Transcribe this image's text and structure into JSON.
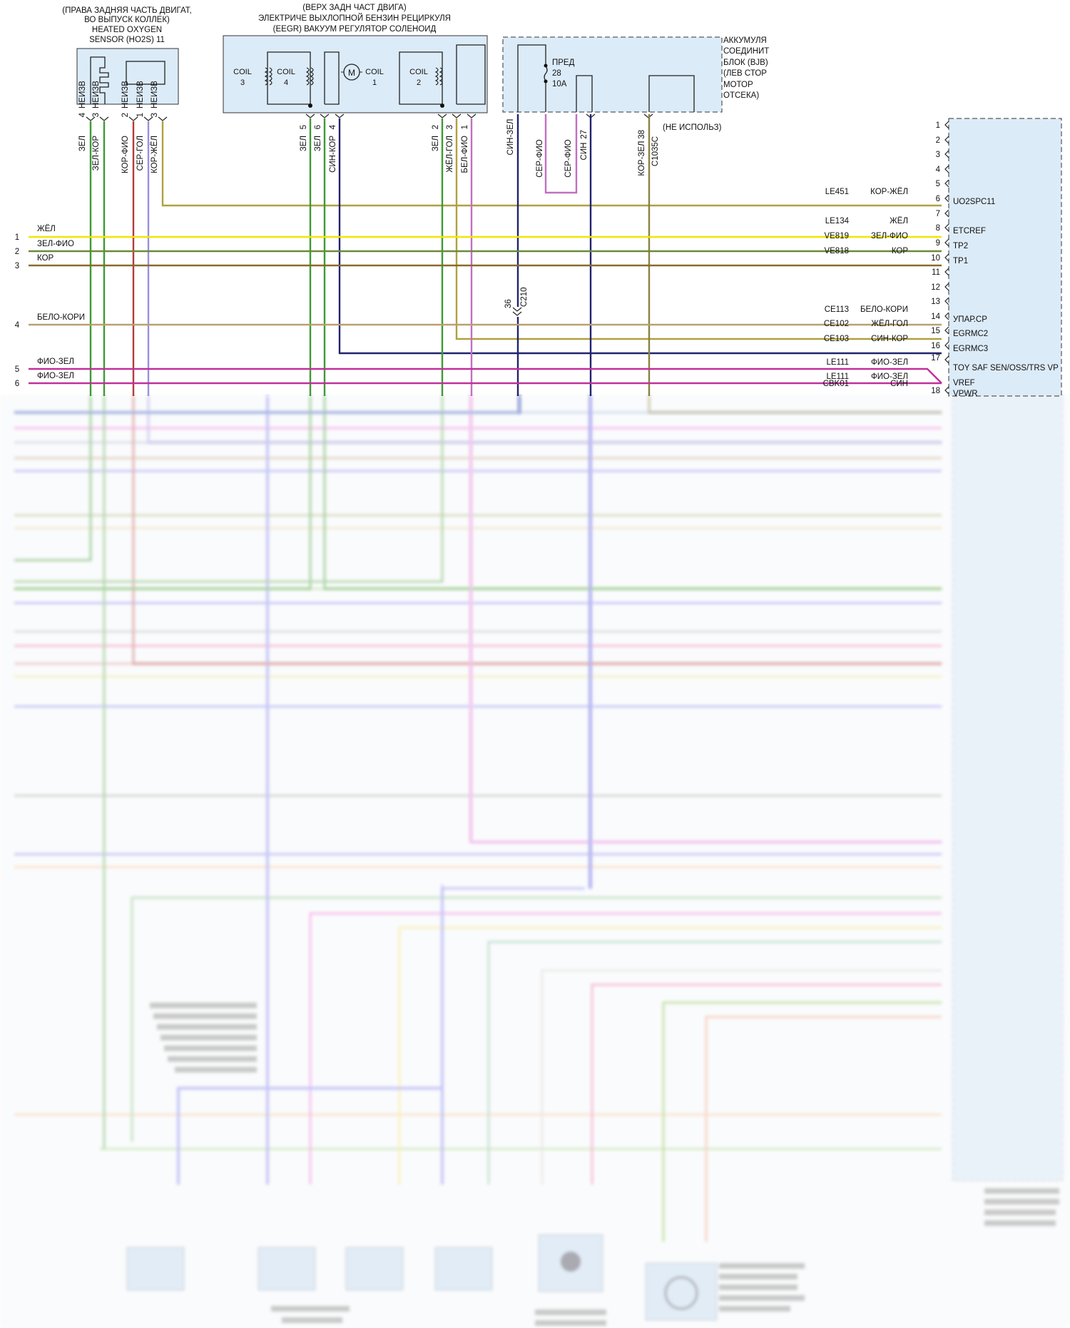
{
  "colors": {
    "wire_green": "#3d9a34",
    "wire_red": "#b43a3a",
    "wire_lavender": "#9a8fdc",
    "wire_olive": "#b0a040",
    "wire_navy": "#22226e",
    "wire_yellow": "#f0e800",
    "wire_brown": "#8a6a2a",
    "wire_magenta": "#c0309a",
    "wire_orchid": "#c070c0",
    "wire_pale_brown": "#b8a070",
    "module_fill": "#dcebf8",
    "blur_blue": "#8080ee",
    "blur_pink": "#ee70dd"
  },
  "icons": [
    "heater-coil-icon",
    "sensor-element-icon",
    "relay-coil-icon",
    "motor-icon",
    "fuse-icon",
    "connector-chevron-icon",
    "splice-dot-icon"
  ],
  "o2_sensor": {
    "title_lines": [
      "(ПРАВА ЗАДНЯЯ ЧАСТЬ ДВИГАТ,",
      "ВО ВЫПУСК КОЛЛЕК)",
      "HEATED OXYGEN",
      "SENSOR (HO2S) 11"
    ],
    "pins": [
      {
        "num": "4",
        "tag": "НЕИЗВ",
        "wire": "ЗЕЛ"
      },
      {
        "num": "3",
        "tag": "НЕИЗВ",
        "wire": "ЗЕЛ-КОР"
      },
      {
        "num": "2",
        "tag": "НЕИЗВ",
        "wire": "КОР-ФИО"
      },
      {
        "num": "1",
        "tag": "НЕИЗВ",
        "wire": "СЕР-ГОЛ"
      },
      {
        "num": "3",
        "tag": "НЕИЗВ",
        "wire": "КОР-ЖЁЛ"
      }
    ]
  },
  "egr": {
    "title_lines": [
      "(ВЕРХ ЗАДН ЧАСТ ДВИГА)",
      "ЭЛЕКТРИЧЕ ВЫХЛОПНОЙ БЕНЗИН РЕЦИРКУЛЯ",
      "(EEGR) ВАКУУМ РЕГУЛЯТОР СОЛЕНОИД"
    ],
    "coils": [
      {
        "label": "COIL",
        "num": "3"
      },
      {
        "label": "COIL",
        "num": "4"
      },
      {
        "label": "COIL",
        "num": "1"
      },
      {
        "label": "COIL",
        "num": "2"
      }
    ],
    "motor_label": "M",
    "pins": [
      {
        "num": "5",
        "wire": "ЗЕЛ"
      },
      {
        "num": "6",
        "wire": "ЗЕЛ"
      },
      {
        "num": "4",
        "wire": "СИН-КОР"
      },
      {
        "num": "2",
        "wire": "ЗЕЛ"
      },
      {
        "num": "3",
        "wire": "ЖЁЛ-ГОЛ"
      },
      {
        "num": "1",
        "wire": "БЕЛ-ФИО"
      }
    ]
  },
  "bjb": {
    "title_lines": [
      "АККУМУЛЯ",
      "СОЕДИНИТ",
      "БЛОК (BJB)",
      "(ЛЕВ СТОР",
      "МОТОР",
      "ОТСЕКА)"
    ],
    "fuse_lines": [
      "ПРЕД",
      "28",
      "10A"
    ],
    "wires": [
      {
        "num": "",
        "wire": "СИН-ЗЕЛ"
      },
      {
        "num": "",
        "wire": "СЕР-ФИО"
      },
      {
        "num": "",
        "wire": "СЕР-ФИО"
      },
      {
        "num": "27",
        "wire": "СИН"
      },
      {
        "num": "38",
        "wire": "КОР-ЗЕЛ"
      }
    ],
    "connector_ref": "C1035C",
    "unused_note": "(НЕ ИСПОЛЬЗ)"
  },
  "inline_connector": {
    "num": "36",
    "name": "C210"
  },
  "left_lines": [
    {
      "num": "1",
      "label": "ЖЁЛ"
    },
    {
      "num": "2",
      "label": "ЗЕЛ-ФИО"
    },
    {
      "num": "3",
      "label": "КОР"
    },
    {
      "num": "4",
      "label": "БЕЛО-КОРИ"
    },
    {
      "num": "5",
      "label": "ФИО-ЗЕЛ"
    },
    {
      "num": "6",
      "label": "ФИО-ЗЕЛ"
    }
  ],
  "pcm_pins": [
    {
      "pin": "1",
      "circuit": "",
      "wire": "",
      "signal": ""
    },
    {
      "pin": "2",
      "circuit": "",
      "wire": "",
      "signal": ""
    },
    {
      "pin": "3",
      "circuit": "",
      "wire": "",
      "signal": ""
    },
    {
      "pin": "4",
      "circuit": "",
      "wire": "",
      "signal": ""
    },
    {
      "pin": "5",
      "circuit": "",
      "wire": "",
      "signal": ""
    },
    {
      "pin": "6",
      "circuit": "LE451",
      "wire": "КОР-ЖЁЛ",
      "signal": "UO2SPC11"
    },
    {
      "pin": "7",
      "circuit": "",
      "wire": "",
      "signal": ""
    },
    {
      "pin": "8",
      "circuit": "LE134",
      "wire": "ЖЁЛ",
      "signal": "ETCREF"
    },
    {
      "pin": "9",
      "circuit": "VE819",
      "wire": "ЗЕЛ-ФИО",
      "signal": "TP2"
    },
    {
      "pin": "10",
      "circuit": "VE818",
      "wire": "КОР",
      "signal": "TP1"
    },
    {
      "pin": "11",
      "circuit": "",
      "wire": "",
      "signal": ""
    },
    {
      "pin": "12",
      "circuit": "",
      "wire": "",
      "signal": ""
    },
    {
      "pin": "13",
      "circuit": "",
      "wire": "",
      "signal": ""
    },
    {
      "pin": "14",
      "circuit": "CE113",
      "wire": "БЕЛО-КОРИ",
      "signal": "УПАР.СР"
    },
    {
      "pin": "15",
      "circuit": "CE102",
      "wire": "ЖЁЛ-ГОЛ",
      "signal": "EGRMC2"
    },
    {
      "pin": "16",
      "circuit": "CE103",
      "wire": "СИН-КОР",
      "signal": "EGRMC3"
    },
    {
      "pin": "17",
      "circuit": "LE111",
      "wire": "ФИО-ЗЕЛ",
      "signal": "TOY SAF SEN/OSS/TRS VP"
    },
    {
      "pin": "17b",
      "circuit": "LE111",
      "wire": "ФИО-ЗЕЛ",
      "signal": "VREF"
    },
    {
      "pin": "18",
      "circuit": "CBK01",
      "wire": "СИН",
      "signal": "VPWR"
    }
  ]
}
